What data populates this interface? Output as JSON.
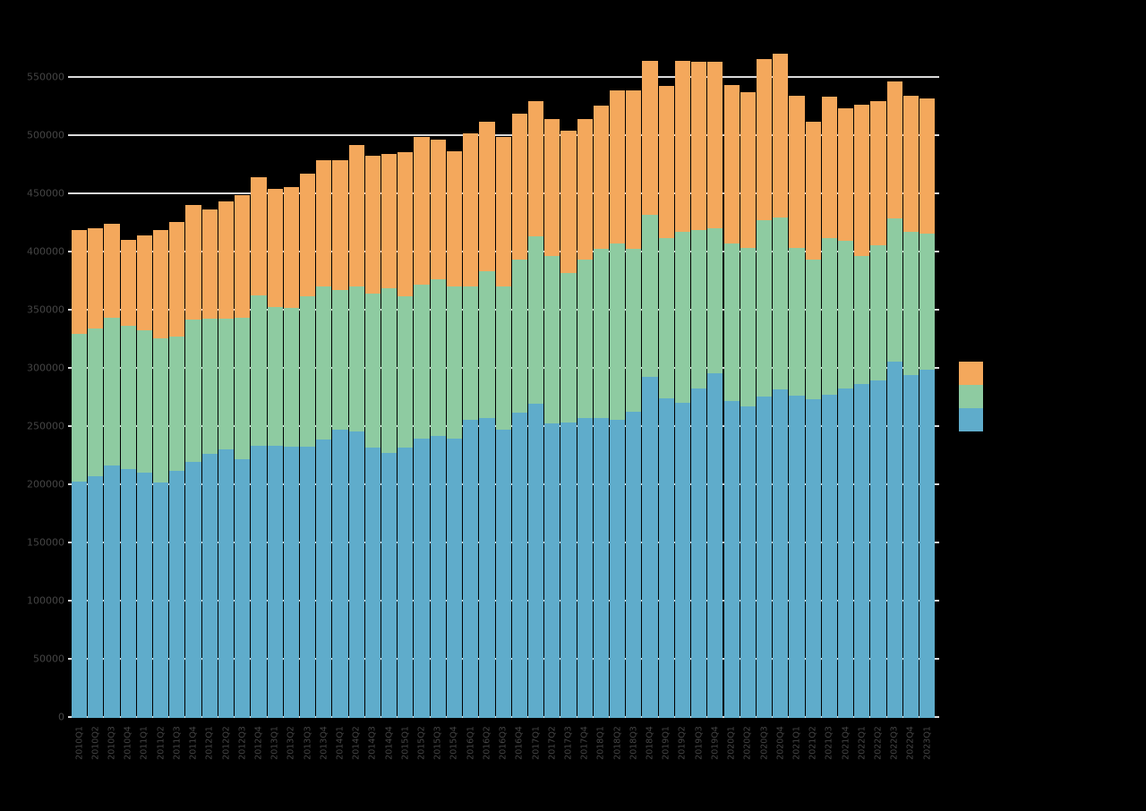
{
  "figure": {
    "background_color": "#000000",
    "gridline_color": "#EDEDED",
    "tick_label_color": "#454545"
  },
  "y_axis": {
    "min": 0,
    "max": 550000,
    "step": 50000,
    "tick_labels": [
      "0",
      "50000",
      "100000",
      "150000",
      "200000",
      "250000",
      "300000",
      "350000",
      "400000",
      "450000",
      "500000",
      "550000"
    ]
  },
  "x_axis": {
    "tick_labels": [
      "2010Q1",
      "2010Q2",
      "2010Q3",
      "2010Q4",
      "2011Q1",
      "2011Q2",
      "2011Q3",
      "2011Q4",
      "2012Q1",
      "2012Q2",
      "2012Q3",
      "2012Q4",
      "2013Q1",
      "2013Q2",
      "2013Q3",
      "2013Q4",
      "2014Q1",
      "2014Q2",
      "2014Q3",
      "2014Q4",
      "2015Q1",
      "2015Q2",
      "2015Q3",
      "2015Q4",
      "2016Q1",
      "2016Q2",
      "2016Q3",
      "2016Q4",
      "2017Q1",
      "2017Q2",
      "2017Q3",
      "2017Q4",
      "2018Q1",
      "2018Q2",
      "2018Q3",
      "2018Q4",
      "2019Q1",
      "2019Q2",
      "2019Q3",
      "2019Q4",
      "2020Q1",
      "2020Q2",
      "2020Q3",
      "2020Q4",
      "2021Q1",
      "2021Q2",
      "2021Q3",
      "2021Q4",
      "2022Q1",
      "2022Q2",
      "2022Q3",
      "2022Q4",
      "2023Q1"
    ],
    "rotation_degrees": -90
  },
  "legend": {
    "items": [
      {
        "name": "orange",
        "color": "#F4A85C",
        "label": ""
      },
      {
        "name": "green",
        "color": "#8ECBA1",
        "label": ""
      },
      {
        "name": "blue",
        "color": "#5FACCB",
        "label": ""
      }
    ]
  },
  "chart_data": {
    "type": "bar",
    "stacked": true,
    "title": "",
    "xlabel": "",
    "ylabel": "",
    "ylim": [
      0,
      550000
    ],
    "grid": "horizontal, every 50000, white lines visible as dots through bar gaps",
    "legend_position": "right, unlabeled color swatches",
    "categories": [
      "2010Q1",
      "2010Q2",
      "2010Q3",
      "2010Q4",
      "2011Q1",
      "2011Q2",
      "2011Q3",
      "2011Q4",
      "2012Q1",
      "2012Q2",
      "2012Q3",
      "2012Q4",
      "2013Q1",
      "2013Q2",
      "2013Q3",
      "2013Q4",
      "2014Q1",
      "2014Q2",
      "2014Q3",
      "2014Q4",
      "2015Q1",
      "2015Q2",
      "2015Q3",
      "2015Q4",
      "2016Q1",
      "2016Q2",
      "2016Q3",
      "2016Q4",
      "2017Q1",
      "2017Q2",
      "2017Q3",
      "2017Q4",
      "2018Q1",
      "2018Q2",
      "2018Q3",
      "2018Q4",
      "2019Q1",
      "2019Q2",
      "2019Q3",
      "2019Q4",
      "2020Q1",
      "2020Q2",
      "2020Q3",
      "2020Q4",
      "2021Q1",
      "2021Q2",
      "2021Q3",
      "2021Q4",
      "2022Q1",
      "2022Q2",
      "2022Q3",
      "2022Q4",
      "2023Q1"
    ],
    "series": [
      {
        "name": "blue (bottom)",
        "color": "#5FACCB",
        "values": [
          203000,
          208000,
          217000,
          214000,
          211000,
          202000,
          212000,
          220000,
          227000,
          231000,
          222000,
          234000,
          234000,
          233000,
          233000,
          239000,
          248000,
          246000,
          232000,
          228000,
          232000,
          240000,
          242000,
          240000,
          256000,
          258000,
          248000,
          262000,
          270000,
          253000,
          254000,
          258000,
          258000,
          256000,
          263000,
          293000,
          275000,
          271000,
          283000,
          296000,
          272000,
          268000,
          276000,
          282000,
          277000,
          274000,
          278000,
          283000,
          287000,
          290000,
          306000,
          295000,
          299000
        ]
      },
      {
        "name": "green (middle)",
        "color": "#8ECBA1",
        "values": [
          127000,
          127000,
          127000,
          123000,
          122000,
          124000,
          116000,
          122000,
          116000,
          112000,
          122000,
          129000,
          119000,
          119000,
          129000,
          132000,
          120000,
          125000,
          133000,
          141000,
          130000,
          132000,
          135000,
          131000,
          115000,
          126000,
          123000,
          132000,
          144000,
          144000,
          128000,
          136000,
          145000,
          152000,
          140000,
          139000,
          137000,
          147000,
          136000,
          125000,
          136000,
          136000,
          152000,
          148000,
          127000,
          120000,
          134000,
          127000,
          110000,
          116000,
          123000,
          123000,
          117000
        ]
      },
      {
        "name": "orange (top)",
        "color": "#F4A85C",
        "values": [
          89000,
          86000,
          81000,
          74000,
          82000,
          93000,
          98000,
          99000,
          94000,
          101000,
          105000,
          102000,
          102000,
          104000,
          106000,
          108000,
          111000,
          121000,
          118000,
          116000,
          124000,
          127000,
          120000,
          116000,
          131000,
          128000,
          128000,
          125000,
          116000,
          118000,
          123000,
          121000,
          123000,
          131000,
          136000,
          133000,
          131000,
          147000,
          145000,
          143000,
          136000,
          134000,
          138000,
          141000,
          131000,
          118000,
          122000,
          114000,
          130000,
          124000,
          118000,
          117000,
          116000
        ]
      }
    ]
  }
}
